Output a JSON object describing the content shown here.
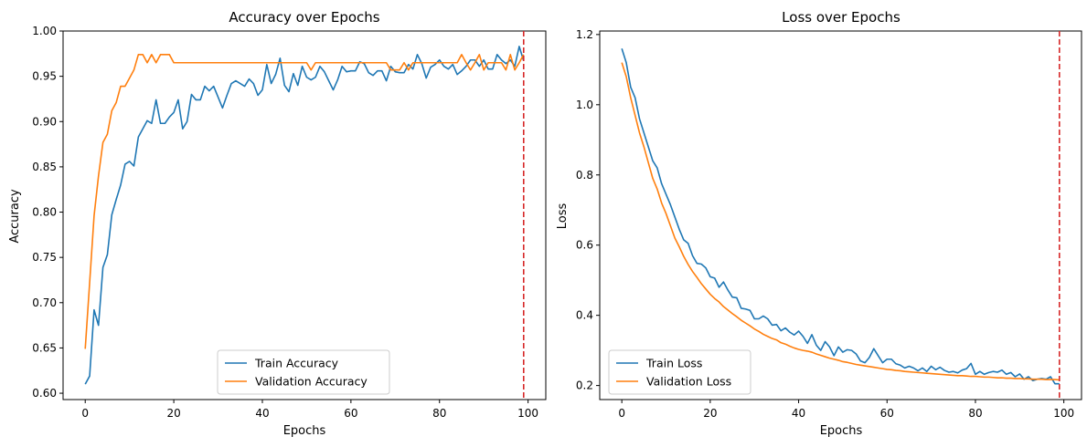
{
  "colors": {
    "train": "#1f77b4",
    "validation": "#ff7f0e",
    "vline": "#d62728",
    "axis": "#000000"
  },
  "chart_data": [
    {
      "type": "line",
      "title": "Accuracy over Epochs",
      "xlabel": "Epochs",
      "ylabel": "Accuracy",
      "xlim": [
        -5,
        104
      ],
      "ylim": [
        0.593,
        1.0
      ],
      "xticks": [
        0,
        20,
        40,
        60,
        80,
        100
      ],
      "yticks": [
        0.6,
        0.65,
        0.7,
        0.75,
        0.8,
        0.85,
        0.9,
        0.95,
        1.0
      ],
      "ytick_labels": [
        "0.60",
        "0.65",
        "0.70",
        "0.75",
        "0.80",
        "0.85",
        "0.90",
        "0.95",
        "1.00"
      ],
      "legend": "lower-center",
      "grid": false,
      "vline": {
        "x": 99,
        "style": "dashed"
      },
      "series": [
        {
          "name": "Train Accuracy",
          "color_key": "train",
          "values": [
            0.61,
            0.619,
            0.692,
            0.675,
            0.739,
            0.753,
            0.797,
            0.814,
            0.83,
            0.853,
            0.856,
            0.851,
            0.883,
            0.892,
            0.901,
            0.898,
            0.924,
            0.898,
            0.898,
            0.905,
            0.91,
            0.924,
            0.892,
            0.9,
            0.93,
            0.924,
            0.924,
            0.939,
            0.934,
            0.939,
            0.927,
            0.915,
            0.929,
            0.942,
            0.945,
            0.942,
            0.939,
            0.947,
            0.942,
            0.929,
            0.935,
            0.963,
            0.942,
            0.952,
            0.97,
            0.94,
            0.933,
            0.953,
            0.94,
            0.961,
            0.949,
            0.946,
            0.949,
            0.961,
            0.955,
            0.945,
            0.935,
            0.946,
            0.961,
            0.955,
            0.956,
            0.956,
            0.966,
            0.964,
            0.954,
            0.951,
            0.956,
            0.956,
            0.945,
            0.961,
            0.955,
            0.954,
            0.954,
            0.963,
            0.958,
            0.974,
            0.964,
            0.948,
            0.96,
            0.963,
            0.968,
            0.961,
            0.958,
            0.963,
            0.952,
            0.956,
            0.961,
            0.968,
            0.968,
            0.961,
            0.968,
            0.958,
            0.958,
            0.974,
            0.968,
            0.964,
            0.968,
            0.961,
            0.983,
            0.967
          ]
        },
        {
          "name": "Validation Accuracy",
          "color_key": "validation",
          "values": [
            0.649,
            0.722,
            0.796,
            0.84,
            0.877,
            0.886,
            0.912,
            0.921,
            0.939,
            0.939,
            0.948,
            0.957,
            0.974,
            0.974,
            0.965,
            0.974,
            0.965,
            0.974,
            0.974,
            0.974,
            0.965,
            0.965,
            0.965,
            0.965,
            0.965,
            0.965,
            0.965,
            0.965,
            0.965,
            0.965,
            0.965,
            0.965,
            0.965,
            0.965,
            0.965,
            0.965,
            0.965,
            0.965,
            0.965,
            0.965,
            0.965,
            0.965,
            0.965,
            0.965,
            0.965,
            0.965,
            0.965,
            0.965,
            0.965,
            0.965,
            0.965,
            0.957,
            0.965,
            0.965,
            0.965,
            0.965,
            0.965,
            0.965,
            0.965,
            0.965,
            0.965,
            0.965,
            0.965,
            0.965,
            0.965,
            0.965,
            0.965,
            0.965,
            0.965,
            0.957,
            0.957,
            0.957,
            0.965,
            0.957,
            0.965,
            0.965,
            0.965,
            0.965,
            0.965,
            0.965,
            0.965,
            0.965,
            0.965,
            0.965,
            0.965,
            0.974,
            0.965,
            0.957,
            0.965,
            0.974,
            0.957,
            0.965,
            0.965,
            0.965,
            0.965,
            0.957,
            0.974,
            0.957,
            0.965,
            0.974
          ]
        }
      ]
    },
    {
      "type": "line",
      "title": "Loss over Epochs",
      "xlabel": "Epochs",
      "ylabel": "Loss",
      "xlim": [
        -5,
        104
      ],
      "ylim": [
        0.16,
        1.21
      ],
      "xticks": [
        0,
        20,
        40,
        60,
        80,
        100
      ],
      "yticks": [
        0.2,
        0.4,
        0.6,
        0.8,
        1.0,
        1.2
      ],
      "ytick_labels": [
        "0.2",
        "0.4",
        "0.6",
        "0.8",
        "1.0",
        "1.2"
      ],
      "legend": "lower-left",
      "grid": false,
      "vline": {
        "x": 99,
        "style": "dashed"
      },
      "series": [
        {
          "name": "Train Loss",
          "color_key": "train",
          "values": [
            1.16,
            1.12,
            1.05,
            1.02,
            0.96,
            0.92,
            0.88,
            0.84,
            0.82,
            0.775,
            0.745,
            0.715,
            0.68,
            0.645,
            0.615,
            0.605,
            0.57,
            0.548,
            0.546,
            0.535,
            0.51,
            0.506,
            0.48,
            0.495,
            0.472,
            0.452,
            0.45,
            0.42,
            0.418,
            0.414,
            0.39,
            0.39,
            0.398,
            0.39,
            0.372,
            0.374,
            0.356,
            0.364,
            0.352,
            0.344,
            0.355,
            0.34,
            0.32,
            0.345,
            0.315,
            0.3,
            0.325,
            0.31,
            0.285,
            0.31,
            0.295,
            0.302,
            0.3,
            0.29,
            0.27,
            0.265,
            0.28,
            0.305,
            0.285,
            0.265,
            0.275,
            0.275,
            0.262,
            0.258,
            0.25,
            0.255,
            0.25,
            0.242,
            0.25,
            0.24,
            0.255,
            0.245,
            0.252,
            0.243,
            0.238,
            0.24,
            0.236,
            0.244,
            0.248,
            0.263,
            0.232,
            0.24,
            0.232,
            0.237,
            0.24,
            0.238,
            0.244,
            0.232,
            0.237,
            0.225,
            0.233,
            0.218,
            0.225,
            0.214,
            0.218,
            0.22,
            0.218,
            0.225,
            0.205,
            0.205
          ]
        },
        {
          "name": "Validation Loss",
          "color_key": "validation",
          "values": [
            1.12,
            1.08,
            1.02,
            0.97,
            0.92,
            0.88,
            0.835,
            0.79,
            0.76,
            0.72,
            0.69,
            0.655,
            0.62,
            0.595,
            0.568,
            0.545,
            0.525,
            0.508,
            0.49,
            0.475,
            0.46,
            0.448,
            0.438,
            0.425,
            0.415,
            0.405,
            0.396,
            0.386,
            0.378,
            0.37,
            0.361,
            0.354,
            0.346,
            0.34,
            0.334,
            0.33,
            0.322,
            0.318,
            0.312,
            0.307,
            0.303,
            0.3,
            0.298,
            0.295,
            0.29,
            0.286,
            0.282,
            0.278,
            0.275,
            0.272,
            0.268,
            0.266,
            0.263,
            0.26,
            0.258,
            0.256,
            0.254,
            0.252,
            0.25,
            0.248,
            0.246,
            0.245,
            0.243,
            0.242,
            0.24,
            0.239,
            0.238,
            0.237,
            0.236,
            0.235,
            0.234,
            0.233,
            0.232,
            0.231,
            0.23,
            0.229,
            0.228,
            0.228,
            0.227,
            0.226,
            0.226,
            0.225,
            0.224,
            0.224,
            0.223,
            0.222,
            0.222,
            0.221,
            0.221,
            0.22,
            0.22,
            0.219,
            0.219,
            0.218,
            0.218,
            0.218,
            0.217,
            0.217,
            0.217,
            0.216
          ]
        }
      ]
    }
  ]
}
